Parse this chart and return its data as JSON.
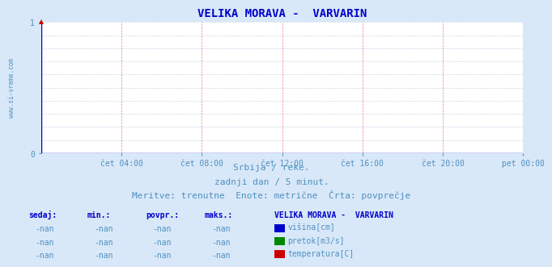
{
  "title": "VELIKA MORAVA -  VARVARIN",
  "title_color": "#0000cc",
  "title_fontsize": 10,
  "bg_color": "#d8e8f8",
  "plot_bg_color": "#ffffff",
  "ylim": [
    0,
    1
  ],
  "yticks": [
    0,
    1
  ],
  "xlim": [
    0,
    288
  ],
  "xtick_labels": [
    "čet 04:00",
    "čet 08:00",
    "čet 12:00",
    "čet 16:00",
    "čet 20:00",
    "pet 00:00"
  ],
  "xtick_positions": [
    48,
    96,
    144,
    192,
    240,
    288
  ],
  "grid_color_h": "#c8d8e8",
  "grid_color_v": "#f08080",
  "watermark": "www.si-vreme.com",
  "watermark_color": "#5090c0",
  "subtitle1": "Srbija / reke.",
  "subtitle2": "zadnji dan / 5 minut.",
  "subtitle3": "Meritve: trenutne  Enote: metrične  Črta: povprečje",
  "subtitle_color": "#5090c0",
  "subtitle_fontsize": 8,
  "table_headers": [
    "sedaj:",
    "min.:",
    "povpr.:",
    "maks.:"
  ],
  "table_header_color": "#0000cc",
  "table_values": [
    "-nan",
    "-nan",
    "-nan",
    "-nan"
  ],
  "table_value_color": "#5090c0",
  "legend_title": "VELIKA MORAVA -  VARVARIN",
  "legend_title_color": "#0000cc",
  "legend_items": [
    {
      "label": "višina[cm]",
      "color": "#0000cc"
    },
    {
      "label": "pretok[m3/s]",
      "color": "#008800"
    },
    {
      "label": "temperatura[C]",
      "color": "#cc0000"
    }
  ],
  "legend_label_color": "#5090c0",
  "axis_line_color": "#0000cc",
  "axis_arrow_color": "#cc0000",
  "tick_label_color": "#5090c0",
  "tick_fontsize": 7,
  "font_family": "monospace"
}
